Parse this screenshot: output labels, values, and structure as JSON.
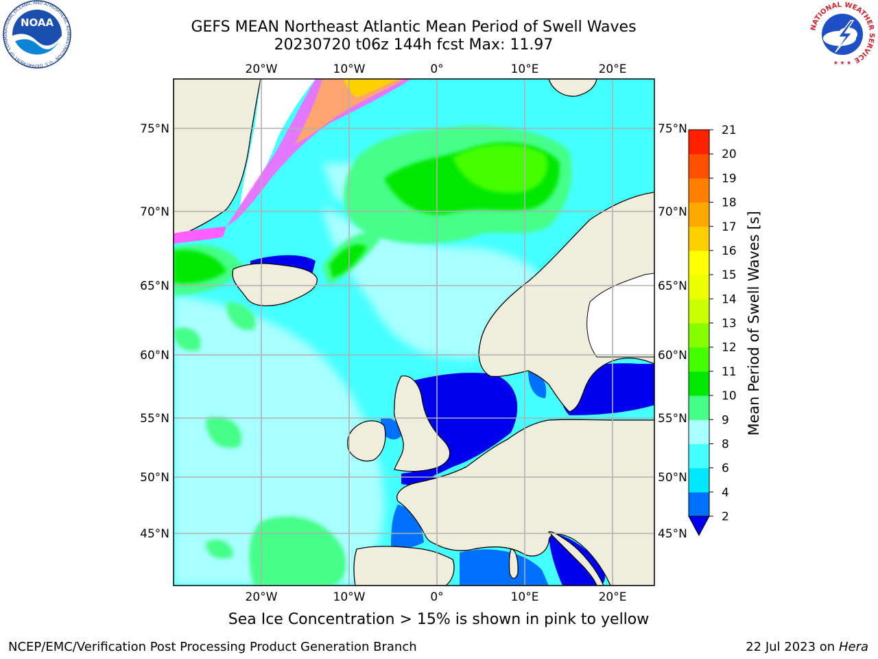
{
  "title": {
    "line1": "GEFS MEAN Northeast Atlantic Mean Period of Swell Waves",
    "line2": "20230720 t06z 144h fcst   Max: 11.97"
  },
  "map": {
    "top_lon_labels": [
      "20°W",
      "10°W",
      "0°",
      "10°E",
      "20°E"
    ],
    "bottom_lon_labels": [
      "20°W",
      "10°W",
      "0°",
      "10°E",
      "20°E"
    ],
    "left_lat_labels": [
      "75°N",
      "70°N",
      "65°N",
      "60°N",
      "55°N",
      "50°N",
      "45°N"
    ],
    "right_lat_labels": [
      "75°N",
      "70°N",
      "65°N",
      "60°N",
      "55°N",
      "50°N",
      "45°N"
    ],
    "land_color": "#efeedd",
    "grid_color": "#b0b0b0"
  },
  "colorbar": {
    "label": "Mean Period of Swell Waves [s]",
    "ticks": [
      "2",
      "4",
      "6",
      "8",
      "9",
      "10",
      "11",
      "12",
      "13",
      "14",
      "15",
      "16",
      "17",
      "18",
      "19",
      "20",
      "21"
    ],
    "colors": [
      "#0070ff",
      "#00e8ff",
      "#44ffff",
      "#a8ffff",
      "#44ff88",
      "#00e800",
      "#44ff00",
      "#88ff00",
      "#ccff00",
      "#eeff00",
      "#ffff00",
      "#ffd000",
      "#ffa800",
      "#ff8000",
      "#ff5000",
      "#ff2000"
    ],
    "extend_color": "#0000ee"
  },
  "ice_note": "Sea Ice Concentration > 15% is shown in pink to yellow",
  "footer": {
    "left": "NCEP/EMC/Verification Post Processing Product Generation Branch",
    "right_date": "22 Jul 2023 on ",
    "right_host": "Hera"
  },
  "logos": {
    "noaa_text": "NOAA",
    "noaa_ring": "NATIONAL OCEANIC AND ATMOSPHERIC ADMINISTRATION · U.S. DEPARTMENT OF COMMERCE",
    "nws_ring": "NATIONAL WEATHER SERVICE"
  }
}
